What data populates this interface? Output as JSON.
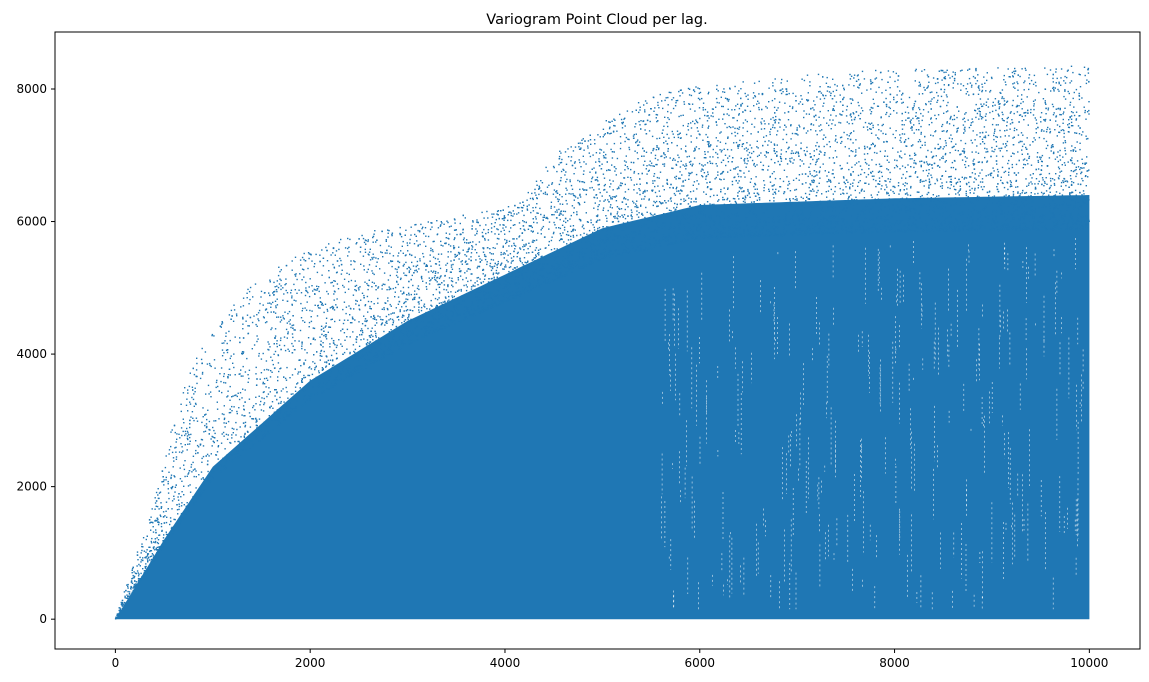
{
  "chart_data": {
    "type": "scatter",
    "title": "Variogram Point Cloud per lag.",
    "xlabel": "",
    "ylabel": "",
    "xlim": [
      -620,
      10520
    ],
    "ylim": [
      -450,
      8860
    ],
    "xticks": [
      0,
      2000,
      4000,
      6000,
      8000,
      10000
    ],
    "yticks": [
      0,
      2000,
      4000,
      6000,
      8000
    ],
    "xtick_labels": [
      "0",
      "2000",
      "4000",
      "6000",
      "8000",
      "10000"
    ],
    "ytick_labels": [
      "0",
      "2000",
      "4000",
      "6000",
      "8000"
    ],
    "grid": false,
    "legend": "none",
    "marker_color": "#1f77b4",
    "series": [
      {
        "x_range": [
          0,
          10000
        ],
        "y_range": [
          0,
          8450
        ],
        "approx_upper_envelope": [
          [
            0,
            0
          ],
          [
            200,
            900
          ],
          [
            400,
            1800
          ],
          [
            600,
            3000
          ],
          [
            800,
            3900
          ],
          [
            1000,
            4400
          ],
          [
            1400,
            5100
          ],
          [
            2000,
            5600
          ],
          [
            2600,
            5850
          ],
          [
            3200,
            6000
          ],
          [
            4000,
            6200
          ],
          [
            4200,
            6350
          ],
          [
            4500,
            7000
          ],
          [
            5000,
            7500
          ],
          [
            5500,
            7900
          ],
          [
            6000,
            8050
          ],
          [
            7000,
            8200
          ],
          [
            8000,
            8300
          ],
          [
            10000,
            8350
          ]
        ],
        "approx_dense_envelope": [
          [
            0,
            0
          ],
          [
            500,
            1200
          ],
          [
            1000,
            2300
          ],
          [
            2000,
            3600
          ],
          [
            3000,
            4500
          ],
          [
            4000,
            5200
          ],
          [
            5000,
            5900
          ],
          [
            6000,
            6250
          ],
          [
            8000,
            6350
          ],
          [
            10000,
            6400
          ]
        ]
      }
    ]
  }
}
